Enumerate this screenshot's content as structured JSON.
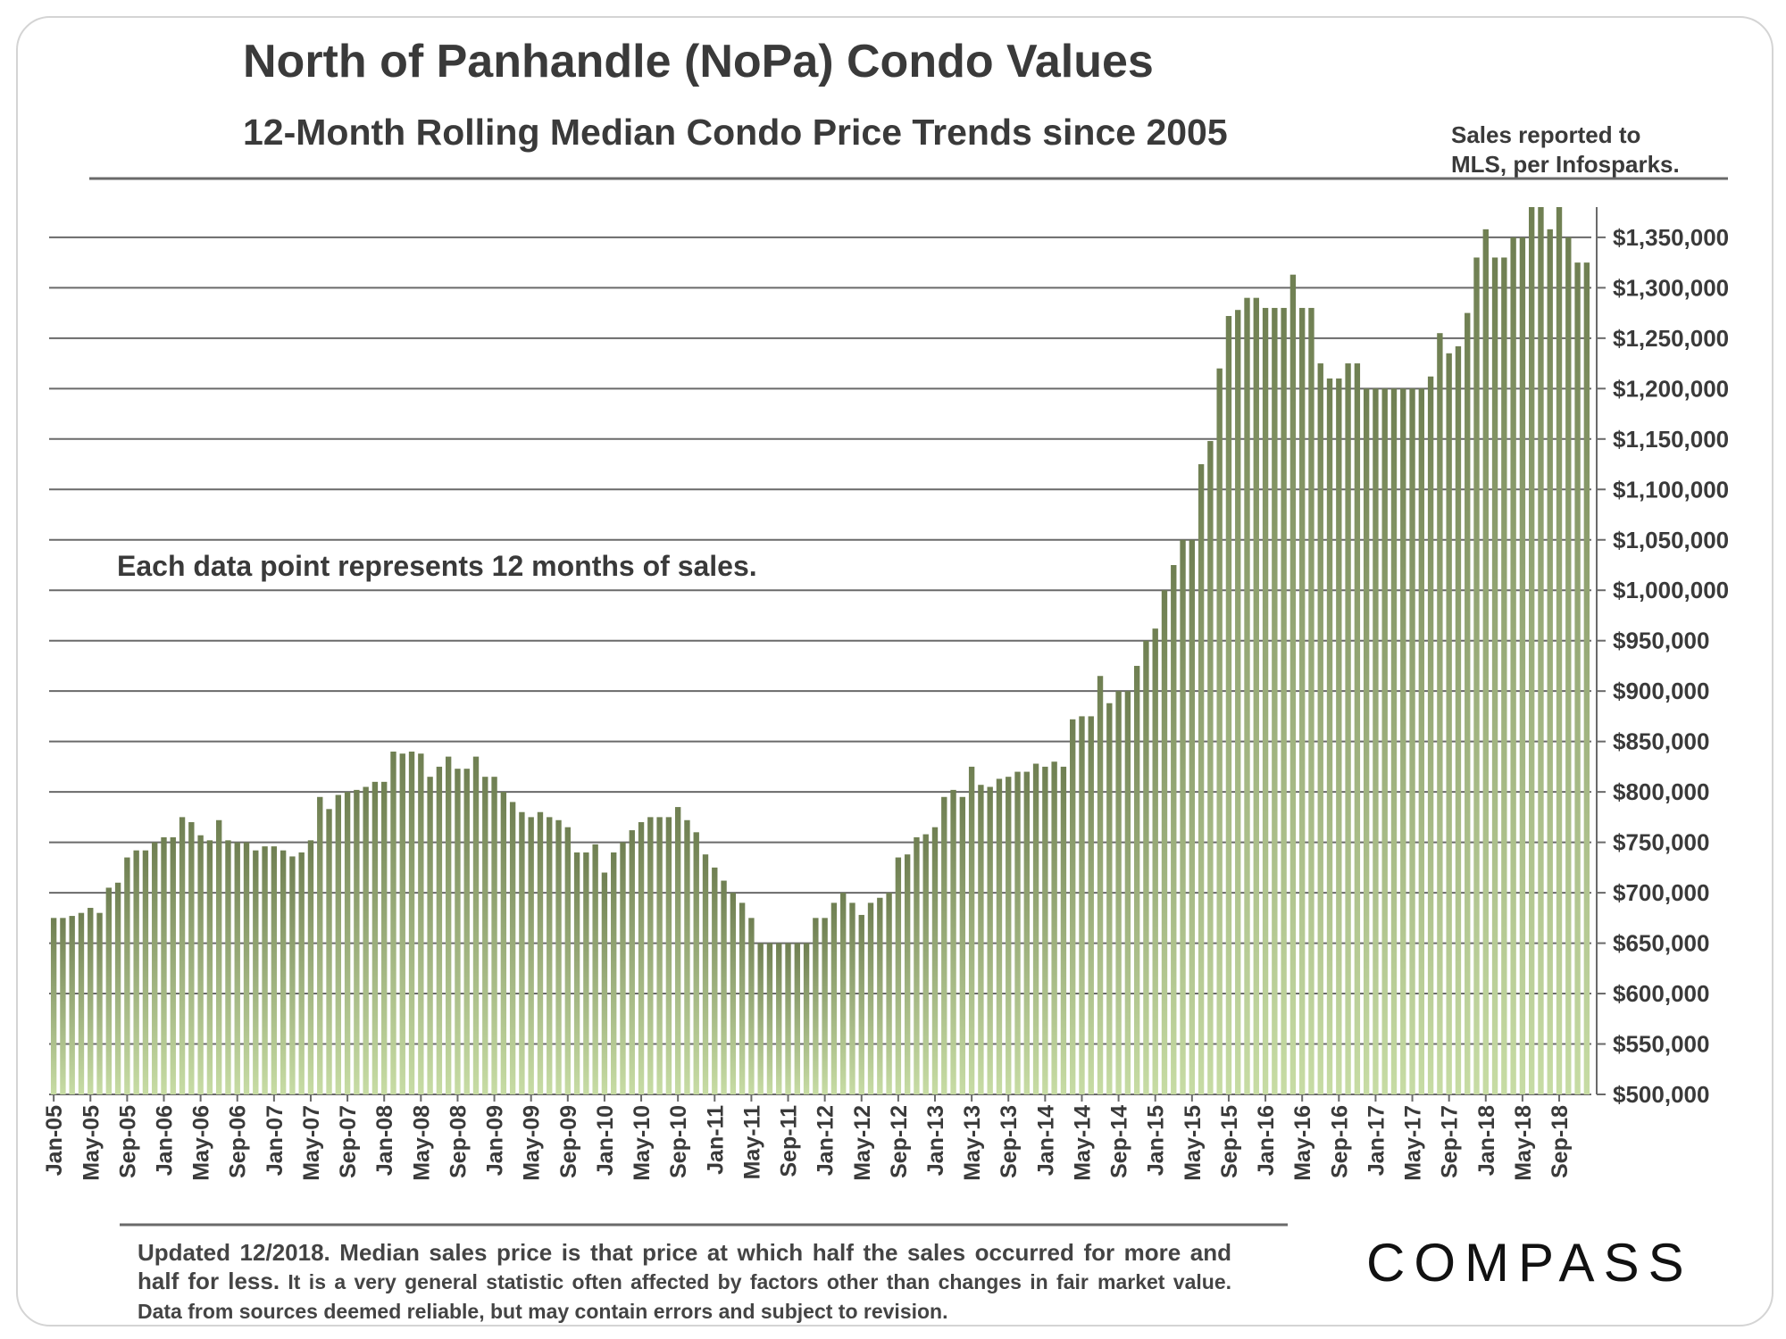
{
  "chart_data": {
    "type": "bar",
    "title": "North of Panhandle (NoPa) Condo Values",
    "subtitle": "12-Month Rolling Median Condo Price Trends since 2005",
    "source_note_line1": "Sales reported to",
    "source_note_line2": "MLS, per Infosparks.",
    "annotation": "Each data point represents 12 months of sales.",
    "ylim": [
      500000,
      1380000
    ],
    "y_ticks": [
      500000,
      550000,
      600000,
      650000,
      700000,
      750000,
      800000,
      850000,
      900000,
      950000,
      1000000,
      1050000,
      1100000,
      1150000,
      1200000,
      1250000,
      1300000,
      1350000
    ],
    "y_tick_labels": [
      "$500,000",
      "$550,000",
      "$600,000",
      "$650,000",
      "$700,000",
      "$750,000",
      "$800,000",
      "$850,000",
      "$900,000",
      "$950,000",
      "$1,000,000",
      "$1,050,000",
      "$1,100,000",
      "$1,150,000",
      "$1,200,000",
      "$1,250,000",
      "$1,300,000",
      "$1,350,000"
    ],
    "x_tick_labels": [
      "Jan-05",
      "May-05",
      "Sep-05",
      "Jan-06",
      "May-06",
      "Sep-06",
      "Jan-07",
      "May-07",
      "Sep-07",
      "Jan-08",
      "May-08",
      "Sep-08",
      "Jan-09",
      "May-09",
      "Sep-09",
      "Jan-10",
      "May-10",
      "Sep-10",
      "Jan-11",
      "May-11",
      "Sep-11",
      "Jan-12",
      "May-12",
      "Sep-12",
      "Jan-13",
      "May-13",
      "Sep-13",
      "Jan-14",
      "May-14",
      "Sep-14",
      "Jan-15",
      "May-15",
      "Sep-15",
      "Jan-16",
      "May-16",
      "Sep-16",
      "Jan-17",
      "May-17",
      "Sep-17",
      "Jan-18",
      "May-18",
      "Sep-18"
    ],
    "start_month": "Jan-05",
    "values": [
      675000,
      675000,
      677000,
      680000,
      685000,
      680000,
      705000,
      710000,
      735000,
      742000,
      742000,
      750000,
      755000,
      755000,
      775000,
      770000,
      757000,
      752000,
      772000,
      752000,
      750000,
      750000,
      742000,
      746000,
      746000,
      742000,
      736000,
      740000,
      752000,
      795000,
      783000,
      797000,
      800000,
      802000,
      805000,
      810000,
      810000,
      840000,
      838000,
      840000,
      838000,
      815000,
      825000,
      835000,
      823000,
      823000,
      835000,
      815000,
      815000,
      800000,
      790000,
      780000,
      775000,
      780000,
      775000,
      772000,
      765000,
      740000,
      740000,
      748000,
      720000,
      740000,
      750000,
      762000,
      770000,
      775000,
      775000,
      775000,
      785000,
      772000,
      760000,
      738000,
      725000,
      712000,
      700000,
      690000,
      675000,
      650000,
      650000,
      650000,
      650000,
      650000,
      650000,
      675000,
      675000,
      690000,
      700000,
      690000,
      678000,
      690000,
      695000,
      700000,
      735000,
      738000,
      755000,
      758000,
      765000,
      795000,
      802000,
      795000,
      825000,
      807000,
      805000,
      813000,
      815000,
      820000,
      820000,
      828000,
      825000,
      830000,
      825000,
      872000,
      875000,
      875000,
      915000,
      888000,
      900000,
      900000,
      925000,
      950000,
      962000,
      1000000,
      1025000,
      1050000,
      1050000,
      1125000,
      1148000,
      1220000,
      1272000,
      1278000,
      1290000,
      1290000,
      1280000,
      1280000,
      1280000,
      1313000,
      1280000,
      1280000,
      1225000,
      1210000,
      1210000,
      1225000,
      1225000,
      1200000,
      1200000,
      1200000,
      1200000,
      1200000,
      1200000,
      1200000,
      1212000,
      1255000,
      1235000,
      1242000,
      1275000,
      1330000,
      1358000,
      1330000,
      1330000,
      1350000,
      1350000,
      1380000,
      1380000,
      1358000,
      1380000,
      1350000,
      1325000,
      1325000
    ]
  },
  "footer": {
    "note_bold": "Updated 12/2018. Median sales price is that price at which half the sales occurred for more and half for less.",
    "note_small": " It is a very general statistic often affected by factors other than changes in fair",
    "note_tail": "market value. Data from sources deemed reliable, but may contain errors and subject to revision.",
    "logo": "COMPASS"
  },
  "colors": {
    "bar_top": "#6f7f52",
    "bar_bottom": "#c7dca4",
    "grid": "#6a6a6a",
    "text": "#3a3a3a"
  }
}
